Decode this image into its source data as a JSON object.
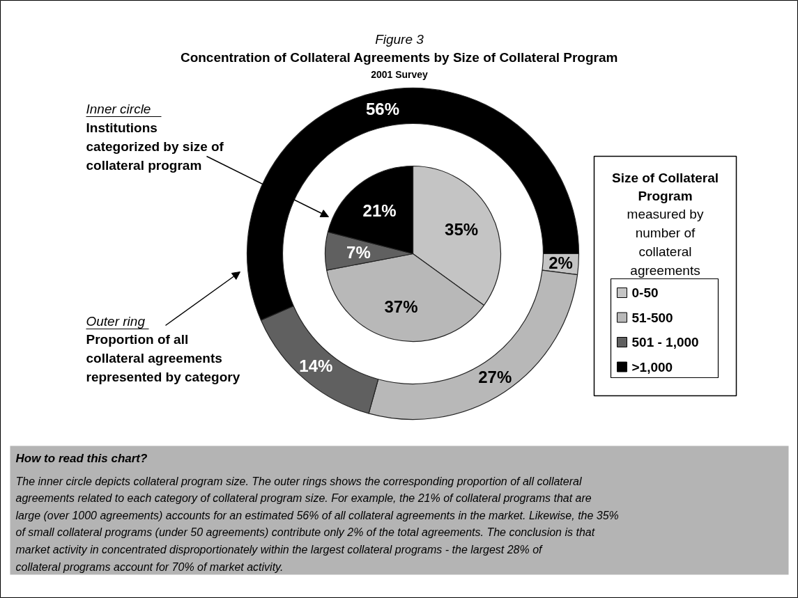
{
  "chart_data": {
    "type": "donut",
    "title": "Concentration of Collateral Agreements by Size of Collateral Program",
    "subtitle": "2001 Survey",
    "categories": [
      "0-50",
      "51-500",
      "501 - 1,000",
      ">1,000"
    ],
    "colors": [
      "#c4c4c4",
      "#b8b8b8",
      "#606060",
      "#000000"
    ],
    "series": [
      {
        "type": "pie",
        "values": [
          35,
          37,
          7,
          21
        ],
        "value_labels": [
          "35%",
          "37%",
          "7%",
          "21%"
        ]
      },
      {
        "values": [
          2,
          27,
          14,
          56
        ],
        "value_labels": [
          "2%",
          "27%",
          "14%",
          "56%"
        ]
      }
    ],
    "legend": "right",
    "legend_title": "Size of Collateral Program",
    "annotations": [
      "Figure 3",
      "Inner circle",
      "Institutions categorized by size of collateral program",
      "Outer ring",
      "Proportion of all collateral agreements represented by category",
      "measured by number of collateral agreements",
      "How to read this chart?",
      "The inner circle depicts collateral program size.  The outer rings shows the corresponding proportion of all collateral agreements related to each category of collateral program size.  For example, the 21% of collateral programs that are large (over 1000 agreements) accounts for an estimated 56% of all collateral agreements in the market.  Likewise, the 35% of small collateral programs (under 50 agreements) contribute only 2% of the total agreements.  The conclusion is that market activity in concentrated disproportionately within the largest collateral programs  -  the largest 28% of collateral programs account for 70% of market activity."
    ]
  }
}
